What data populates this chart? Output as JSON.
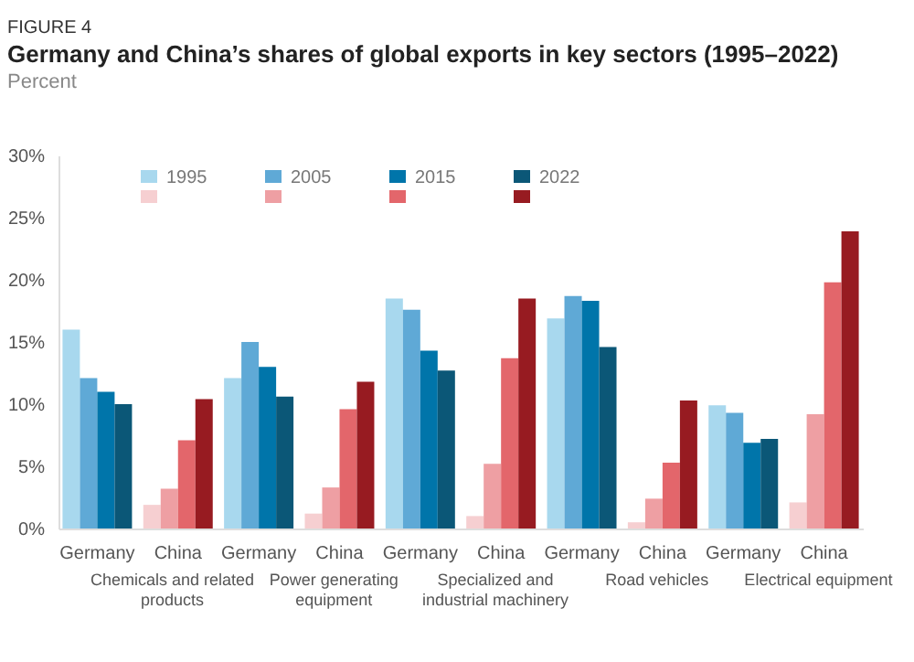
{
  "chart_data": {
    "type": "bar",
    "title": "Germany and China’s shares of global exports in key sectors (1995–2022)",
    "subtitle": "Percent",
    "annotations": [
      "FIGURE 4",
      "Chemicals and related products",
      "Power generating equipment",
      "Specialized and industrial machinery",
      "Road vehicles",
      "Electrical equipment"
    ],
    "categories": [
      "Germany",
      "China",
      "Germany",
      "China",
      "Germany",
      "China",
      "Germany",
      "China",
      "Germany",
      "China"
    ],
    "series": [
      {
        "name": "1995",
        "colors": [
          "#a8d8ee",
          "#f6cfd1",
          "#a8d8ee",
          "#f6cfd1",
          "#a8d8ee",
          "#f6cfd1",
          "#a8d8ee",
          "#f6cfd1",
          "#a8d8ee",
          "#f6cfd1"
        ],
        "values": [
          16,
          1.9,
          12.1,
          1.2,
          18.5,
          1.0,
          16.9,
          0.5,
          9.9,
          2.1
        ]
      },
      {
        "name": "2005",
        "colors": [
          "#5fa9d6",
          "#ee9fa3",
          "#5fa9d6",
          "#ee9fa3",
          "#5fa9d6",
          "#ee9fa3",
          "#5fa9d6",
          "#ee9fa3",
          "#5fa9d6",
          "#ee9fa3"
        ],
        "values": [
          12.1,
          3.2,
          15,
          3.3,
          17.6,
          5.2,
          18.7,
          2.4,
          9.3,
          9.2
        ]
      },
      {
        "name": "2015",
        "colors": [
          "#0075aa",
          "#e3666b",
          "#0075aa",
          "#e3666b",
          "#0075aa",
          "#e3666b",
          "#0075aa",
          "#e3666b",
          "#0075aa",
          "#e3666b"
        ],
        "values": [
          11.0,
          7.1,
          13.0,
          9.6,
          14.3,
          13.7,
          18.3,
          5.3,
          6.9,
          19.8
        ]
      },
      {
        "name": "2022",
        "colors": [
          "#0b5777",
          "#971b21",
          "#0b5777",
          "#971b21",
          "#0b5777",
          "#971b21",
          "#0b5777",
          "#971b21",
          "#0b5777",
          "#971b21"
        ],
        "values": [
          10.0,
          10.4,
          10.6,
          11.8,
          12.7,
          18.5,
          14.6,
          10.3,
          7.2,
          23.9
        ]
      }
    ],
    "ylim": [
      0,
      30
    ],
    "yticks": [
      {
        "value": 0,
        "label": "0%"
      },
      {
        "value": 5,
        "label": "5%"
      },
      {
        "value": 10,
        "label": "10%"
      },
      {
        "value": 15,
        "label": "15%"
      },
      {
        "value": 20,
        "label": "20%"
      },
      {
        "value": 25,
        "label": "25%"
      },
      {
        "value": 30,
        "label": "30%"
      }
    ],
    "grid": false,
    "legend": "top"
  }
}
